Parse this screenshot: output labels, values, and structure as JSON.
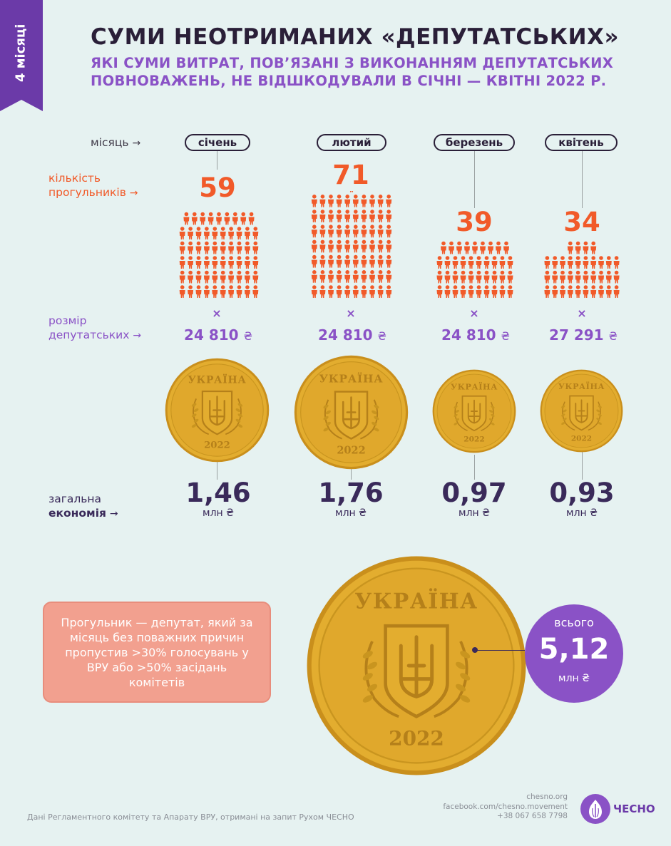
{
  "ribbon": {
    "label": "4 місяці"
  },
  "header": {
    "title": "СУМИ НЕОТРИМАНИХ «ДЕПУТАТСЬКИХ»",
    "subtitle": "ЯКІ СУМИ ВИТРАТ, ПОВ’ЯЗАНІ З ВИКОНАННЯМ ДЕПУТАТСЬКИХ ПОВНОВАЖЕНЬ, НЕ ВІДШКОДУВАЛИ В СІЧНІ — КВІТНІ 2022 Р."
  },
  "labels": {
    "month": "місяць",
    "count_line1": "кількість",
    "count_line2": "прогульників",
    "size_line1": "розмір",
    "size_line2": "депутатських",
    "total_line1": "загальна",
    "total_line2": "економія",
    "arrow": "→",
    "times": "×",
    "currency": "₴",
    "unit": "млн ₴"
  },
  "months": [
    {
      "name": "січень",
      "absentees": 59,
      "rate": "24 810",
      "total": "1,46",
      "coin_scale": 1.46
    },
    {
      "name": "лютий",
      "absentees": 71,
      "rate": "24 810",
      "total": "1,76",
      "coin_scale": 1.76
    },
    {
      "name": "березень",
      "absentees": 39,
      "rate": "24 810",
      "total": "0,97",
      "coin_scale": 0.97
    },
    {
      "name": "квітень",
      "absentees": 34,
      "rate": "27 291",
      "total": "0,93",
      "coin_scale": 0.93
    }
  ],
  "coin": {
    "country": "УКРАЇНА",
    "year": "2022"
  },
  "note": {
    "text": "Прогульник — депутат, який за місяць без поважних причин пропустив >30% голосувань у ВРУ або >50% засідань комітетів"
  },
  "total": {
    "label": "всього",
    "value": "5,12",
    "unit": "млн ₴"
  },
  "footer": {
    "source": "Дані Регламентного комітету та Апарату ВРУ, отримані на запит Рухом ЧЕСНО",
    "site": "chesno.org",
    "facebook": "facebook.com/chesno.movement",
    "phone": "+38 067 658 7798",
    "logo_text": "ЧЕСНО"
  },
  "colors": {
    "orange": "#f15a29",
    "purple": "#8a52c6",
    "dark": "#2a1f38",
    "coin": "#e3ad2f",
    "background": "#e6f2f1"
  }
}
